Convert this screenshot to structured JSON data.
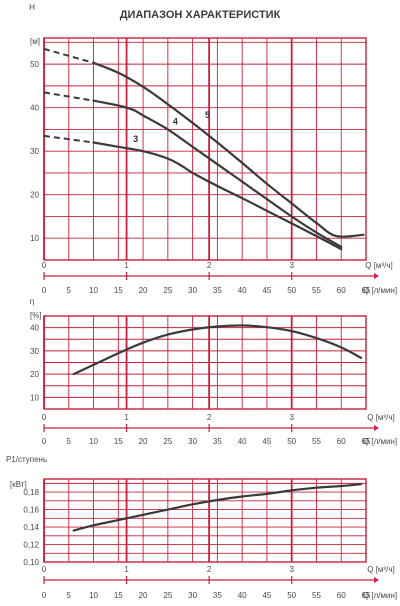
{
  "title": "ДИАПАЗОН ХАРАКТЕРИСТИК",
  "colors": {
    "grid": "#c8203c",
    "curve": "#3a3a3a",
    "text": "#4a4a4a"
  },
  "x_axis": {
    "q_m3h_label": "Q [м³/ч]",
    "q_m3h_ticks": [
      "0",
      "1",
      "2",
      "3"
    ],
    "q_m3h_values": [
      0,
      1,
      2,
      3
    ],
    "q_lmin_label": "Q [л/мин]",
    "q_lmin_ticks": [
      "0",
      "5",
      "10",
      "15",
      "20",
      "25",
      "30",
      "35",
      "40",
      "45",
      "50",
      "55",
      "60",
      "65"
    ],
    "q_lmin_values": [
      0,
      5,
      10,
      15,
      20,
      25,
      30,
      35,
      40,
      45,
      50,
      55,
      60,
      65
    ]
  },
  "chart_data": [
    {
      "type": "line",
      "ylabel_line1": "H",
      "ylabel_line2": "[м]",
      "yticks": [
        "10",
        "20",
        "30",
        "40",
        "50"
      ],
      "ytick_values": [
        10,
        20,
        30,
        40,
        50
      ],
      "ylim": [
        5,
        56
      ],
      "xlim": [
        0,
        65
      ],
      "series": [
        {
          "name": "5",
          "dashed": [
            [
              0,
              53.5
            ],
            [
              10,
              50.3
            ]
          ],
          "values": [
            [
              10,
              50.3
            ],
            [
              15,
              48.0
            ],
            [
              20,
              44.8
            ],
            [
              25,
              40.8
            ],
            [
              30,
              36.5
            ],
            [
              35,
              32.0
            ],
            [
              40,
              27.3
            ],
            [
              45,
              22.5
            ],
            [
              50,
              18.0
            ],
            [
              55,
              13.5
            ],
            [
              59,
              10.5
            ],
            [
              64.5,
              10.8
            ]
          ]
        },
        {
          "name": "4",
          "dashed": [
            [
              0,
              43.5
            ],
            [
              10,
              41.6
            ]
          ],
          "values": [
            [
              10,
              41.6
            ],
            [
              15,
              40.5
            ],
            [
              18,
              39.5
            ],
            [
              20,
              38.2
            ],
            [
              25,
              35.0
            ],
            [
              30,
              31.0
            ],
            [
              35,
              27.0
            ],
            [
              40,
              23.0
            ],
            [
              45,
              19.0
            ],
            [
              50,
              15.0
            ],
            [
              55,
              11.3
            ],
            [
              60,
              8.0
            ]
          ]
        },
        {
          "name": "3",
          "dashed": [
            [
              0,
              33.5
            ],
            [
              10,
              32.0
            ]
          ],
          "values": [
            [
              10,
              32.0
            ],
            [
              15,
              31.0
            ],
            [
              20,
              30.0
            ],
            [
              25,
              28.3
            ],
            [
              28,
              26.5
            ],
            [
              30,
              25.0
            ],
            [
              35,
              22.0
            ],
            [
              40,
              19.2
            ],
            [
              45,
              16.3
            ],
            [
              50,
              13.4
            ],
            [
              55,
              10.5
            ],
            [
              60,
              7.5
            ]
          ]
        }
      ]
    },
    {
      "type": "line",
      "ylabel_line1": "η",
      "ylabel_line2": "[%]",
      "yticks": [
        "10",
        "20",
        "30",
        "40"
      ],
      "ytick_values": [
        10,
        20,
        30,
        40
      ],
      "ylim": [
        5,
        45
      ],
      "xlim": [
        0,
        65
      ],
      "series": [
        {
          "values": [
            [
              6,
              20.0
            ],
            [
              10,
              24.0
            ],
            [
              15,
              29.0
            ],
            [
              20,
              33.5
            ],
            [
              25,
              37.0
            ],
            [
              30,
              39.2
            ],
            [
              35,
              40.5
            ],
            [
              40,
              40.9
            ],
            [
              45,
              40.2
            ],
            [
              50,
              38.5
            ],
            [
              55,
              35.5
            ],
            [
              60,
              31.5
            ],
            [
              64,
              27.0
            ]
          ]
        }
      ]
    },
    {
      "type": "line",
      "ylabel_line1": "P1/ступень",
      "ylabel_line2": "[кВт]",
      "yticks": [
        "0,10",
        "0,12",
        "0,14",
        "0,16",
        "0,18"
      ],
      "ytick_values": [
        0.1,
        0.12,
        0.14,
        0.16,
        0.18
      ],
      "ylim": [
        0.1,
        0.195
      ],
      "xlim": [
        0,
        65
      ],
      "series": [
        {
          "values": [
            [
              6,
              0.136
            ],
            [
              10,
              0.142
            ],
            [
              15,
              0.148
            ],
            [
              20,
              0.154
            ],
            [
              25,
              0.16
            ],
            [
              30,
              0.166
            ],
            [
              35,
              0.171
            ],
            [
              40,
              0.175
            ],
            [
              45,
              0.178
            ],
            [
              50,
              0.182
            ],
            [
              55,
              0.185
            ],
            [
              60,
              0.187
            ],
            [
              64,
              0.189
            ]
          ]
        }
      ]
    }
  ]
}
